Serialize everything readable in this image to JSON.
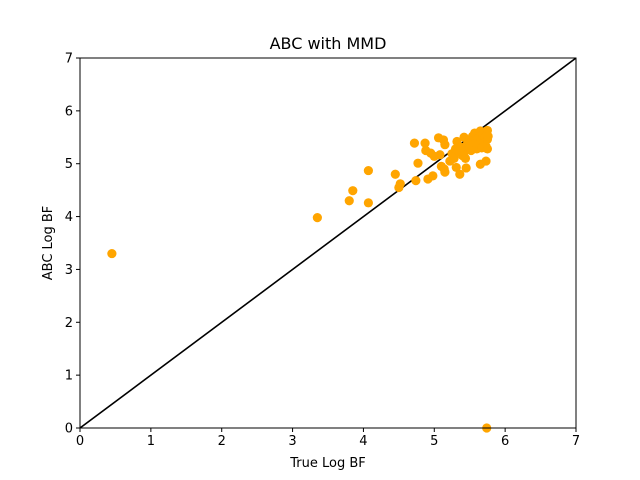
{
  "colors": {
    "points": "#FFA500",
    "diagonal": "#000000",
    "axes": "#000000",
    "background": "#FFFFFF"
  },
  "chart_data": {
    "type": "scatter",
    "title": "ABC with MMD",
    "xlabel": "True Log BF",
    "ylabel": "ABC Log BF",
    "xlim": [
      0,
      7
    ],
    "ylim": [
      0,
      7
    ],
    "xticks": [
      0,
      1,
      2,
      3,
      4,
      5,
      6,
      7
    ],
    "yticks": [
      0,
      1,
      2,
      3,
      4,
      5,
      6,
      7
    ],
    "xtick_labels": [
      "0",
      "1",
      "2",
      "3",
      "4",
      "5",
      "6",
      "7"
    ],
    "ytick_labels": [
      "0",
      "1",
      "2",
      "3",
      "4",
      "5",
      "6",
      "7"
    ],
    "grid": false,
    "reference_line": {
      "type": "y=x",
      "from": [
        0,
        0
      ],
      "to": [
        7,
        7
      ]
    },
    "points": [
      [
        0.45,
        3.3
      ],
      [
        3.35,
        3.98
      ],
      [
        3.8,
        4.3
      ],
      [
        3.85,
        4.49
      ],
      [
        4.07,
        4.26
      ],
      [
        4.07,
        4.87
      ],
      [
        4.45,
        4.8
      ],
      [
        4.5,
        4.55
      ],
      [
        4.52,
        4.62
      ],
      [
        4.72,
        5.39
      ],
      [
        4.74,
        4.68
      ],
      [
        4.77,
        5.01
      ],
      [
        4.87,
        5.39
      ],
      [
        4.88,
        5.25
      ],
      [
        4.91,
        4.71
      ],
      [
        4.95,
        5.2
      ],
      [
        4.98,
        4.77
      ],
      [
        5.0,
        5.14
      ],
      [
        5.06,
        5.49
      ],
      [
        5.08,
        5.17
      ],
      [
        5.1,
        4.95
      ],
      [
        5.13,
        5.45
      ],
      [
        5.14,
        4.9
      ],
      [
        5.15,
        4.84
      ],
      [
        5.15,
        5.36
      ],
      [
        5.22,
        5.05
      ],
      [
        5.25,
        5.19
      ],
      [
        5.28,
        5.1
      ],
      [
        5.3,
        5.28
      ],
      [
        5.31,
        4.93
      ],
      [
        5.32,
        5.42
      ],
      [
        5.35,
        5.22
      ],
      [
        5.36,
        4.8
      ],
      [
        5.38,
        5.31
      ],
      [
        5.4,
        5.15
      ],
      [
        5.42,
        5.5
      ],
      [
        5.43,
        5.23
      ],
      [
        5.44,
        5.1
      ],
      [
        5.45,
        4.92
      ],
      [
        5.47,
        5.38
      ],
      [
        5.48,
        5.3
      ],
      [
        5.5,
        5.45
      ],
      [
        5.52,
        5.25
      ],
      [
        5.54,
        5.52
      ],
      [
        5.55,
        5.35
      ],
      [
        5.57,
        5.58
      ],
      [
        5.58,
        5.42
      ],
      [
        5.6,
        5.28
      ],
      [
        5.62,
        5.48
      ],
      [
        5.63,
        5.37
      ],
      [
        5.65,
        5.62
      ],
      [
        5.65,
        4.99
      ],
      [
        5.66,
        5.45
      ],
      [
        5.67,
        5.3
      ],
      [
        5.68,
        5.55
      ],
      [
        5.7,
        5.4
      ],
      [
        5.71,
        5.6
      ],
      [
        5.72,
        5.5
      ],
      [
        5.73,
        5.05
      ],
      [
        5.73,
        5.33
      ],
      [
        5.74,
        5.58
      ],
      [
        5.75,
        5.46
      ],
      [
        5.75,
        5.28
      ],
      [
        5.75,
        5.63
      ],
      [
        5.76,
        5.52
      ],
      [
        5.74,
        0.0
      ]
    ]
  }
}
